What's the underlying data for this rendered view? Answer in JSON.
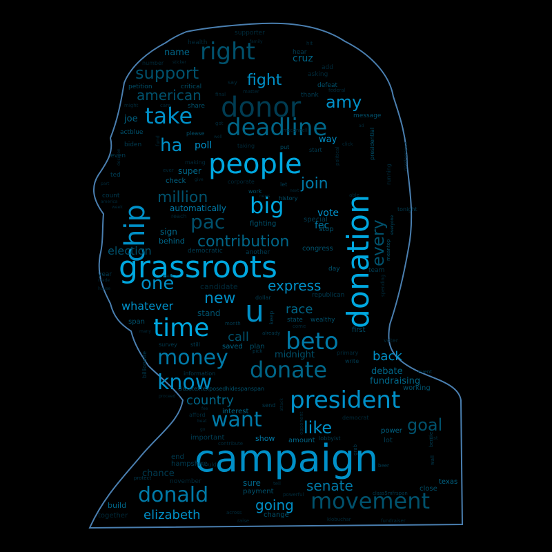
{
  "colors": {
    "background": "#000000",
    "outline": "#4a7fb0",
    "shades": [
      "#00a8e0",
      "#0090c8",
      "#007aa8",
      "#006688",
      "#00516c",
      "#003c52",
      "#002a3a"
    ]
  },
  "words": [
    {
      "text": "campaign",
      "size": 54,
      "shade": 1
    },
    {
      "text": "grassroots",
      "size": 44,
      "shade": 0
    },
    {
      "text": "donation",
      "size": 44,
      "shade": 0
    },
    {
      "text": "people",
      "size": 40,
      "shade": 0
    },
    {
      "text": "chip",
      "size": 40,
      "shade": 1
    },
    {
      "text": "u",
      "size": 44,
      "shade": 1
    },
    {
      "text": "donor",
      "size": 40,
      "shade": 5
    },
    {
      "text": "time",
      "size": 36,
      "shade": 0
    },
    {
      "text": "beto",
      "size": 34,
      "shade": 2
    },
    {
      "text": "president",
      "size": 34,
      "shade": 1
    },
    {
      "text": "deadline",
      "size": 34,
      "shade": 3
    },
    {
      "text": "right",
      "size": 34,
      "shade": 4
    },
    {
      "text": "big",
      "size": 32,
      "shade": 0
    },
    {
      "text": "take",
      "size": 32,
      "shade": 1
    },
    {
      "text": "donate",
      "size": 32,
      "shade": 3
    },
    {
      "text": "movement",
      "size": 32,
      "shade": 4
    },
    {
      "text": "money",
      "size": 30,
      "shade": 2
    },
    {
      "text": "know",
      "size": 30,
      "shade": 1
    },
    {
      "text": "want",
      "size": 30,
      "shade": 2
    },
    {
      "text": "donald",
      "size": 30,
      "shade": 2
    },
    {
      "text": "pac",
      "size": 28,
      "shade": 4
    },
    {
      "text": "ha",
      "size": 26,
      "shade": 1
    },
    {
      "text": "one",
      "size": 26,
      "shade": 1
    },
    {
      "text": "goal",
      "size": 24,
      "shade": 4
    },
    {
      "text": "amy",
      "size": 24,
      "shade": 1
    },
    {
      "text": "fight",
      "size": 22,
      "shade": 1
    },
    {
      "text": "support",
      "size": 24,
      "shade": 4
    },
    {
      "text": "every",
      "size": 24,
      "shade": 4
    },
    {
      "text": "like",
      "size": 24,
      "shade": 1
    },
    {
      "text": "contribution",
      "size": 22,
      "shade": 3
    },
    {
      "text": "million",
      "size": 22,
      "shade": 4
    },
    {
      "text": "join",
      "size": 22,
      "shade": 2
    },
    {
      "text": "new",
      "size": 22,
      "shade": 1
    },
    {
      "text": "express",
      "size": 20,
      "shade": 1
    },
    {
      "text": "american",
      "size": 20,
      "shade": 4
    },
    {
      "text": "going",
      "size": 20,
      "shade": 1
    },
    {
      "text": "elizabeth",
      "size": 18,
      "shade": 1
    },
    {
      "text": "senate",
      "size": 20,
      "shade": 2
    },
    {
      "text": "country",
      "size": 18,
      "shade": 3
    },
    {
      "text": "race",
      "size": 18,
      "shade": 3
    },
    {
      "text": "call",
      "size": 18,
      "shade": 4
    },
    {
      "text": "back",
      "size": 18,
      "shade": 1
    },
    {
      "text": "whatever",
      "size": 16,
      "shade": 1
    },
    {
      "text": "election",
      "size": 16,
      "shade": 4
    },
    {
      "text": "poll",
      "size": 14,
      "shade": 1
    },
    {
      "text": "cruz",
      "size": 14,
      "shade": 3
    },
    {
      "text": "fec",
      "size": 14,
      "shade": 2
    },
    {
      "text": "vote",
      "size": 14,
      "shade": 1
    },
    {
      "text": "name",
      "size": 13,
      "shade": 3
    },
    {
      "text": "joe",
      "size": 13,
      "shade": 3
    },
    {
      "text": "way",
      "size": 13,
      "shade": 1
    },
    {
      "text": "debate",
      "size": 13,
      "shade": 3
    },
    {
      "text": "fundraising",
      "size": 13,
      "shade": 3
    },
    {
      "text": "midnight",
      "size": 13,
      "shade": 4
    },
    {
      "text": "automatically",
      "size": 12,
      "shade": 2
    },
    {
      "text": "stand",
      "size": 12,
      "shade": 4
    },
    {
      "text": "sign",
      "size": 12,
      "shade": 3
    },
    {
      "text": "super",
      "size": 12,
      "shade": 3
    },
    {
      "text": "chance",
      "size": 13,
      "shade": 5
    },
    {
      "text": "sure",
      "size": 12,
      "shade": 3
    },
    {
      "text": "build",
      "size": 11,
      "shade": 3
    },
    {
      "text": "show",
      "size": 11,
      "shade": 2
    },
    {
      "text": "behind",
      "size": 11,
      "shade": 3
    },
    {
      "text": "check",
      "size": 10,
      "shade": 3
    },
    {
      "text": "fighting",
      "size": 10,
      "shade": 4
    },
    {
      "text": "congress",
      "size": 10,
      "shade": 4
    },
    {
      "text": "working",
      "size": 10,
      "shade": 4
    },
    {
      "text": "power",
      "size": 10,
      "shade": 3
    },
    {
      "text": "texas",
      "size": 10,
      "shade": 3
    },
    {
      "text": "close",
      "size": 10,
      "shade": 4
    },
    {
      "text": "payment",
      "size": 10,
      "shade": 4
    },
    {
      "text": "change",
      "size": 10,
      "shade": 4
    },
    {
      "text": "special",
      "size": 10,
      "shade": 5
    },
    {
      "text": "stop",
      "size": 10,
      "shade": 4
    },
    {
      "text": "lot",
      "size": 10,
      "shade": 5
    },
    {
      "text": "span",
      "size": 10,
      "shade": 4
    },
    {
      "text": "end",
      "size": 10,
      "shade": 5
    },
    {
      "text": "hampshire",
      "size": 10,
      "shade": 5
    },
    {
      "text": "important",
      "size": 10,
      "shade": 5
    },
    {
      "text": "interest",
      "size": 10,
      "shade": 3
    },
    {
      "text": "plan",
      "size": 10,
      "shade": 4
    },
    {
      "text": "saved",
      "size": 10,
      "shade": 3
    },
    {
      "text": "first",
      "size": 10,
      "shade": 4
    },
    {
      "text": "amount",
      "size": 10,
      "shade": 3
    },
    {
      "text": "together",
      "size": 10,
      "shade": 6
    },
    {
      "text": "november",
      "size": 9,
      "shade": 6
    },
    {
      "text": "defeat",
      "size": 9,
      "shade": 4
    },
    {
      "text": "critical",
      "size": 9,
      "shade": 4
    },
    {
      "text": "share",
      "size": 9,
      "shade": 4
    },
    {
      "text": "petition",
      "size": 9,
      "shade": 4
    },
    {
      "text": "message",
      "size": 9,
      "shade": 4
    },
    {
      "text": "actblue",
      "size": 9,
      "shade": 4
    },
    {
      "text": "biden",
      "size": 9,
      "shade": 5
    },
    {
      "text": "even",
      "size": 9,
      "shade": 5
    },
    {
      "text": "ted",
      "size": 9,
      "shade": 5
    },
    {
      "text": "count",
      "size": 9,
      "shade": 5
    },
    {
      "text": "democratic",
      "size": 9,
      "shade": 5
    },
    {
      "text": "another",
      "size": 9,
      "shade": 5
    },
    {
      "text": "day",
      "size": 9,
      "shade": 4
    },
    {
      "text": "team",
      "size": 9,
      "shade": 5
    },
    {
      "text": "year",
      "size": 9,
      "shade": 5
    },
    {
      "text": "candidate",
      "size": 11,
      "shade": 6
    },
    {
      "text": "republican",
      "size": 9,
      "shade": 5
    },
    {
      "text": "wealthy",
      "size": 9,
      "shade": 4
    },
    {
      "text": "state",
      "size": 9,
      "shade": 4
    },
    {
      "text": "supporter",
      "size": 9,
      "shade": 6
    },
    {
      "text": "health",
      "size": 9,
      "shade": 6
    },
    {
      "text": "hear",
      "size": 9,
      "shade": 5
    },
    {
      "text": "thank",
      "size": 9,
      "shade": 5
    },
    {
      "text": "asking",
      "size": 9,
      "shade": 6
    },
    {
      "text": "add",
      "size": 9,
      "shade": 6
    },
    {
      "text": "number",
      "size": 8,
      "shade": 6
    },
    {
      "text": "say",
      "size": 8,
      "shade": 6
    },
    {
      "text": "please",
      "size": 8,
      "shade": 4
    },
    {
      "text": "put",
      "size": 8,
      "shade": 4
    },
    {
      "text": "start",
      "size": 8,
      "shade": 5
    },
    {
      "text": "making",
      "size": 8,
      "shade": 6
    },
    {
      "text": "taking",
      "size": 8,
      "shade": 6
    },
    {
      "text": "corporate",
      "size": 8,
      "shade": 6
    },
    {
      "text": "let",
      "size": 8,
      "shade": 5
    },
    {
      "text": "work",
      "size": 8,
      "shade": 4
    },
    {
      "text": "history",
      "size": 8,
      "shade": 4
    },
    {
      "text": "able",
      "size": 7,
      "shade": 6
    },
    {
      "text": "reach",
      "size": 8,
      "shade": 6
    },
    {
      "text": "tonight",
      "size": 8,
      "shade": 5
    },
    {
      "text": "running",
      "size": 8,
      "shade": 6
    },
    {
      "text": "presidential",
      "size": 8,
      "shade": 4
    },
    {
      "text": "dollar",
      "size": 8,
      "shade": 5
    },
    {
      "text": "keep",
      "size": 8,
      "shade": 5
    },
    {
      "text": "voter",
      "size": 8,
      "shade": 6
    },
    {
      "text": "primary",
      "size": 8,
      "shade": 6
    },
    {
      "text": "write",
      "size": 8,
      "shade": 5
    },
    {
      "text": "event",
      "size": 7,
      "shade": 5
    },
    {
      "text": "information",
      "size": 8,
      "shade": 5
    },
    {
      "text": "billionaire",
      "size": 8,
      "shade": 5
    },
    {
      "text": "survey",
      "size": 8,
      "shade": 5
    },
    {
      "text": "still",
      "size": 8,
      "shade": 5
    },
    {
      "text": "send",
      "size": 8,
      "shade": 5
    },
    {
      "text": "afford",
      "size": 8,
      "shade": 6
    },
    {
      "text": "contribute",
      "size": 7,
      "shade": 6
    },
    {
      "text": "would",
      "size": 8,
      "shade": 6
    },
    {
      "text": "lobbyist",
      "size": 8,
      "shade": 5
    },
    {
      "text": "grab",
      "size": 7,
      "shade": 5
    },
    {
      "text": "beer",
      "size": 7,
      "shade": 5
    },
    {
      "text": "bernie",
      "size": 7,
      "shade": 5
    },
    {
      "text": "wall",
      "size": 7,
      "shade": 5
    },
    {
      "text": "protect",
      "size": 7,
      "shade": 5
    },
    {
      "text": "class5mfrspan",
      "size": 7,
      "shade": 5
    },
    {
      "text": "fundraiser",
      "size": 7,
      "shade": 6
    },
    {
      "text": "klobuchar",
      "size": 7,
      "shade": 6
    },
    {
      "text": "raise",
      "size": 7,
      "shade": 6
    },
    {
      "text": "across",
      "size": 7,
      "shade": 6
    },
    {
      "text": "powerful",
      "size": 7,
      "shade": 6
    },
    {
      "text": "tell",
      "size": 7,
      "shade": 6
    },
    {
      "text": "democrat",
      "size": 8,
      "shade": 6
    },
    {
      "text": "opponent",
      "size": 7,
      "shade": 6
    },
    {
      "text": "classtextexposedhidespanspan",
      "size": 8,
      "shade": 4
    },
    {
      "text": "already",
      "size": 7,
      "shade": 5
    },
    {
      "text": "pick",
      "size": 7,
      "shade": 5
    },
    {
      "text": "month",
      "size": 7,
      "shade": 5
    },
    {
      "text": "spending",
      "size": 7,
      "shade": 6
    },
    {
      "text": "meantop",
      "size": 7,
      "shade": 4
    },
    {
      "text": "everyone",
      "size": 6,
      "shade": 4
    },
    {
      "text": "come",
      "size": 7,
      "shade": 6
    },
    {
      "text": "fund",
      "size": 7,
      "shade": 6
    },
    {
      "text": "ever",
      "size": 7,
      "shade": 6
    },
    {
      "text": "give",
      "size": 6,
      "shade": 6
    },
    {
      "text": "got",
      "size": 7,
      "shade": 6
    },
    {
      "text": "well",
      "size": 6,
      "shade": 6
    },
    {
      "text": "final",
      "size": 7,
      "shade": 6
    },
    {
      "text": "matter",
      "size": 7,
      "shade": 6
    },
    {
      "text": "care",
      "size": 7,
      "shade": 6
    },
    {
      "text": "might",
      "size": 7,
      "shade": 6
    },
    {
      "text": "mcconnell",
      "size": 7,
      "shade": 6
    },
    {
      "text": "federal",
      "size": 7,
      "shade": 6
    },
    {
      "text": "hit",
      "size": 7,
      "shade": 6
    },
    {
      "text": "family",
      "size": 6,
      "shade": 6
    },
    {
      "text": "sticker",
      "size": 6,
      "shade": 6
    },
    {
      "text": "click",
      "size": 7,
      "shade": 6
    },
    {
      "text": "political",
      "size": 7,
      "shade": 6
    },
    {
      "text": "news",
      "size": 6,
      "shade": 6
    },
    {
      "text": "next",
      "size": 6,
      "shade": 6
    },
    {
      "text": "decision",
      "size": 6,
      "shade": 6
    },
    {
      "text": "part",
      "size": 6,
      "shade": 6
    },
    {
      "text": "america",
      "size": 6,
      "shade": 6
    },
    {
      "text": "week",
      "size": 6,
      "shade": 6
    },
    {
      "text": "made",
      "size": 6,
      "shade": 6
    },
    {
      "text": "house",
      "size": 6,
      "shade": 6
    },
    {
      "text": "meet",
      "size": 6,
      "shade": 6
    },
    {
      "text": "many",
      "size": 6,
      "shade": 6
    },
    {
      "text": "proceed",
      "size": 6,
      "shade": 6
    },
    {
      "text": "beat",
      "size": 6,
      "shade": 6
    },
    {
      "text": "go",
      "size": 6,
      "shade": 6
    },
    {
      "text": "fee",
      "size": 6,
      "shade": 6
    },
    {
      "text": "attack",
      "size": 6,
      "shade": 6
    },
    {
      "text": "last",
      "size": 7,
      "shade": 6
    },
    {
      "text": "ad",
      "size": 6,
      "shade": 6
    },
    {
      "text": "classlnerajson",
      "size": 6,
      "shade": 6
    }
  ]
}
